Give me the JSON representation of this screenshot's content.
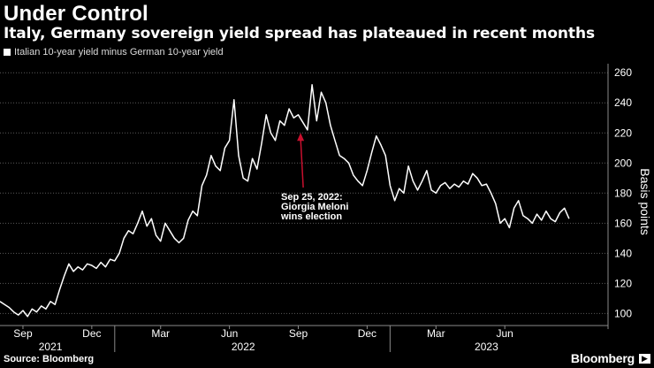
{
  "header": {
    "title": "Under Control",
    "subtitle": "Italy, Germany sovereign yield spread has plateaued in recent months",
    "legend_label": "Italian 10-year yield minus German 10-year yield"
  },
  "footer": {
    "source": "Source: Bloomberg",
    "brand": "Bloomberg"
  },
  "colors": {
    "background": "#000000",
    "line": "#ffffff",
    "annotation_arrow": "#c8102e",
    "text": "#ffffff",
    "muted": "#dcdcdc"
  },
  "chart_data": {
    "type": "line",
    "title": "Under Control",
    "subtitle": "Italy, Germany sovereign yield spread has plateaued in recent months",
    "ylabel": "Basis points",
    "xlabel": "",
    "ylim": [
      92,
      266
    ],
    "yticks": [
      100,
      120,
      140,
      160,
      180,
      200,
      220,
      240,
      260
    ],
    "x_domain": [
      0,
      26.5
    ],
    "x_unit": "months since 2021-08-01",
    "xticks": [
      {
        "x": 1,
        "label": "Sep"
      },
      {
        "x": 4,
        "label": "Dec"
      },
      {
        "x": 7,
        "label": "Mar"
      },
      {
        "x": 10,
        "label": "Jun"
      },
      {
        "x": 13,
        "label": "Sep"
      },
      {
        "x": 16,
        "label": "Dec"
      },
      {
        "x": 19,
        "label": "Mar"
      },
      {
        "x": 22,
        "label": "Jun"
      }
    ],
    "year_labels": [
      {
        "x": 2.2,
        "label": "2021"
      },
      {
        "x": 10.6,
        "label": "2022"
      },
      {
        "x": 21.2,
        "label": "2023"
      }
    ],
    "year_separators": [
      5.0,
      17.0
    ],
    "series": [
      {
        "name": "Italian 10-year yield minus German 10-year yield",
        "points": [
          [
            0.0,
            108
          ],
          [
            0.2,
            106
          ],
          [
            0.4,
            104
          ],
          [
            0.6,
            101
          ],
          [
            0.8,
            99
          ],
          [
            1.0,
            102
          ],
          [
            1.2,
            98
          ],
          [
            1.4,
            103
          ],
          [
            1.6,
            101
          ],
          [
            1.8,
            105
          ],
          [
            2.0,
            103
          ],
          [
            2.2,
            108
          ],
          [
            2.4,
            106
          ],
          [
            2.6,
            116
          ],
          [
            2.8,
            125
          ],
          [
            3.0,
            133
          ],
          [
            3.2,
            128
          ],
          [
            3.4,
            131
          ],
          [
            3.6,
            129
          ],
          [
            3.8,
            133
          ],
          [
            4.0,
            132
          ],
          [
            4.2,
            130
          ],
          [
            4.4,
            134
          ],
          [
            4.6,
            131
          ],
          [
            4.8,
            136
          ],
          [
            5.0,
            135
          ],
          [
            5.2,
            140
          ],
          [
            5.4,
            150
          ],
          [
            5.6,
            155
          ],
          [
            5.8,
            153
          ],
          [
            6.0,
            160
          ],
          [
            6.2,
            168
          ],
          [
            6.4,
            158
          ],
          [
            6.6,
            163
          ],
          [
            6.8,
            152
          ],
          [
            7.0,
            148
          ],
          [
            7.2,
            160
          ],
          [
            7.4,
            155
          ],
          [
            7.6,
            150
          ],
          [
            7.8,
            147
          ],
          [
            8.0,
            150
          ],
          [
            8.2,
            162
          ],
          [
            8.4,
            168
          ],
          [
            8.6,
            165
          ],
          [
            8.8,
            185
          ],
          [
            9.0,
            192
          ],
          [
            9.2,
            205
          ],
          [
            9.4,
            198
          ],
          [
            9.6,
            195
          ],
          [
            9.8,
            210
          ],
          [
            10.0,
            215
          ],
          [
            10.2,
            242
          ],
          [
            10.4,
            205
          ],
          [
            10.6,
            190
          ],
          [
            10.8,
            188
          ],
          [
            11.0,
            203
          ],
          [
            11.2,
            196
          ],
          [
            11.4,
            213
          ],
          [
            11.6,
            232
          ],
          [
            11.8,
            220
          ],
          [
            12.0,
            215
          ],
          [
            12.2,
            228
          ],
          [
            12.4,
            225
          ],
          [
            12.6,
            236
          ],
          [
            12.8,
            230
          ],
          [
            13.0,
            232
          ],
          [
            13.2,
            227
          ],
          [
            13.4,
            222
          ],
          [
            13.6,
            252
          ],
          [
            13.8,
            228
          ],
          [
            14.0,
            247
          ],
          [
            14.2,
            240
          ],
          [
            14.4,
            225
          ],
          [
            14.6,
            215
          ],
          [
            14.8,
            205
          ],
          [
            15.0,
            203
          ],
          [
            15.2,
            200
          ],
          [
            15.4,
            192
          ],
          [
            15.6,
            188
          ],
          [
            15.8,
            185
          ],
          [
            16.0,
            195
          ],
          [
            16.2,
            207
          ],
          [
            16.4,
            218
          ],
          [
            16.6,
            212
          ],
          [
            16.8,
            205
          ],
          [
            17.0,
            185
          ],
          [
            17.2,
            175
          ],
          [
            17.4,
            183
          ],
          [
            17.6,
            180
          ],
          [
            17.8,
            198
          ],
          [
            18.0,
            188
          ],
          [
            18.2,
            182
          ],
          [
            18.4,
            188
          ],
          [
            18.6,
            195
          ],
          [
            18.8,
            182
          ],
          [
            19.0,
            180
          ],
          [
            19.2,
            185
          ],
          [
            19.4,
            187
          ],
          [
            19.6,
            183
          ],
          [
            19.8,
            186
          ],
          [
            20.0,
            184
          ],
          [
            20.2,
            188
          ],
          [
            20.4,
            186
          ],
          [
            20.6,
            193
          ],
          [
            20.8,
            190
          ],
          [
            21.0,
            185
          ],
          [
            21.2,
            186
          ],
          [
            21.4,
            180
          ],
          [
            21.6,
            173
          ],
          [
            21.8,
            160
          ],
          [
            22.0,
            163
          ],
          [
            22.2,
            157
          ],
          [
            22.4,
            170
          ],
          [
            22.6,
            175
          ],
          [
            22.8,
            165
          ],
          [
            23.0,
            163
          ],
          [
            23.2,
            160
          ],
          [
            23.4,
            166
          ],
          [
            23.6,
            162
          ],
          [
            23.8,
            168
          ],
          [
            24.0,
            163
          ],
          [
            24.2,
            161
          ],
          [
            24.4,
            167
          ],
          [
            24.6,
            170
          ],
          [
            24.8,
            163
          ]
        ]
      }
    ],
    "annotations": [
      {
        "x": 13.1,
        "y": 220,
        "label_lines": [
          "Sep 25, 2022:",
          "Giorgia Meloni",
          "wins election"
        ]
      }
    ]
  }
}
